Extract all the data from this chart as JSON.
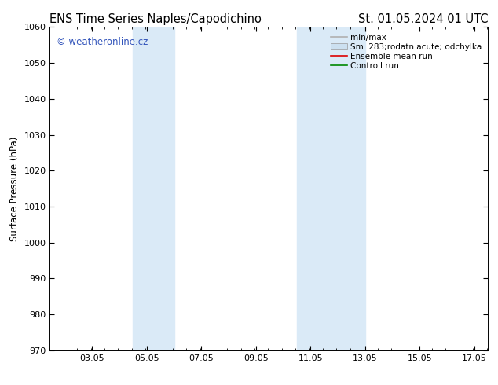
{
  "title_left": "ENS Time Series Naples/Capodichino",
  "title_right": "St. 01.05.2024 01 UTC",
  "ylabel": "Surface Pressure (hPa)",
  "ylim": [
    970,
    1060
  ],
  "yticks": [
    970,
    980,
    990,
    1000,
    1010,
    1020,
    1030,
    1040,
    1050,
    1060
  ],
  "xlim_start": 1.5,
  "xlim_end": 17.55,
  "xticks": [
    3.05,
    5.05,
    7.05,
    9.05,
    11.05,
    13.05,
    15.05,
    17.05
  ],
  "xtick_labels": [
    "03.05",
    "05.05",
    "07.05",
    "09.05",
    "11.05",
    "13.05",
    "15.05",
    "17.05"
  ],
  "shaded_bands": [
    {
      "xmin": 4.55,
      "xmax": 6.05
    },
    {
      "xmin": 10.55,
      "xmax": 13.05
    }
  ],
  "shaded_color": "#daeaf7",
  "watermark_text": "© weatheronline.cz",
  "watermark_color": "#3355bb",
  "legend_entries": [
    {
      "label": "min/max",
      "color": "#b0b0b0",
      "style": "line"
    },
    {
      "label": "Sm  283;rodatn acute; odchylka",
      "color": "#cce0f0",
      "style": "patch"
    },
    {
      "label": "Ensemble mean run",
      "color": "#dd0000",
      "style": "line"
    },
    {
      "label": "Controll run",
      "color": "#008800",
      "style": "line"
    }
  ],
  "background_color": "#ffffff",
  "plot_bg_color": "#ffffff",
  "title_fontsize": 10.5,
  "label_fontsize": 8.5,
  "tick_fontsize": 8,
  "legend_fontsize": 7.5,
  "watermark_fontsize": 8.5
}
